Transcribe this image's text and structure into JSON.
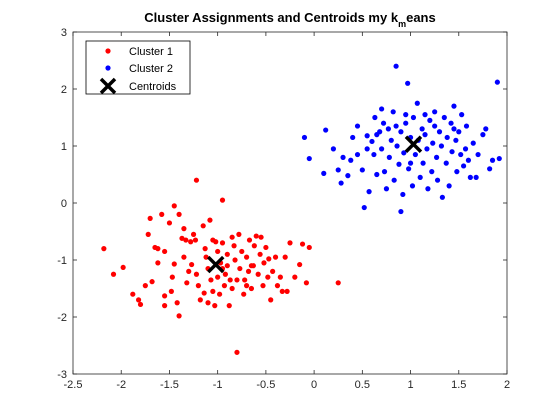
{
  "chart_data": {
    "type": "scatter",
    "title": {
      "before": "Cluster Assignments and Centroids my k",
      "subscript": "m",
      "after": "eans"
    },
    "xlabel": "",
    "ylabel": "",
    "xlim": [
      -2.5,
      2
    ],
    "ylim": [
      -3,
      3
    ],
    "x_ticks": [
      "-2.5",
      "-2",
      "-1.5",
      "-1",
      "-0.5",
      "0",
      "0.5",
      "1",
      "1.5",
      "2"
    ],
    "y_ticks": [
      "-3",
      "-2",
      "-1",
      "0",
      "1",
      "2",
      "3"
    ],
    "grid": false,
    "legend_position": "top-left",
    "series": [
      {
        "name": "Cluster 1",
        "color": "#ff0000",
        "marker": "dot",
        "points": [
          [
            -2.18,
            -0.8
          ],
          [
            -2.08,
            -1.25
          ],
          [
            -1.98,
            -1.13
          ],
          [
            -1.88,
            -1.6
          ],
          [
            -1.82,
            -1.7
          ],
          [
            -1.8,
            -1.78
          ],
          [
            -1.75,
            -1.45
          ],
          [
            -1.72,
            -0.55
          ],
          [
            -1.7,
            -0.27
          ],
          [
            -1.68,
            -1.38
          ],
          [
            -1.65,
            -0.78
          ],
          [
            -1.62,
            -0.8
          ],
          [
            -1.62,
            -1.05
          ],
          [
            -1.58,
            -0.2
          ],
          [
            -1.55,
            -1.63
          ],
          [
            -1.55,
            -1.8
          ],
          [
            -1.5,
            -0.35
          ],
          [
            -1.48,
            -1.55
          ],
          [
            -1.47,
            -1.3
          ],
          [
            -1.45,
            -0.05
          ],
          [
            -1.45,
            -1.07
          ],
          [
            -1.42,
            -1.75
          ],
          [
            -1.4,
            -0.2
          ],
          [
            -1.4,
            -1.98
          ],
          [
            -1.37,
            -0.62
          ],
          [
            -1.35,
            -0.95
          ],
          [
            -1.33,
            -0.65
          ],
          [
            -1.32,
            -1.4
          ],
          [
            -1.3,
            -1.2
          ],
          [
            -1.28,
            -0.68
          ],
          [
            -1.27,
            -1.08
          ],
          [
            -1.25,
            -0.55
          ],
          [
            -1.23,
            -0.65
          ],
          [
            -1.22,
            -1.25
          ],
          [
            -1.2,
            -1.45
          ],
          [
            -1.18,
            -1.7
          ],
          [
            -1.15,
            -0.4
          ],
          [
            -1.14,
            -1.58
          ],
          [
            -1.13,
            -0.8
          ],
          [
            -1.12,
            -0.95
          ],
          [
            -1.1,
            -1.15
          ],
          [
            -1.1,
            -1.75
          ],
          [
            -1.08,
            -0.3
          ],
          [
            -1.07,
            -1.35
          ],
          [
            -1.05,
            -0.65
          ],
          [
            -1.05,
            -1.55
          ],
          [
            -1.03,
            -1.8
          ],
          [
            -1.02,
            -0.68
          ],
          [
            -1.0,
            -0.85
          ],
          [
            -1.0,
            -1.3
          ],
          [
            -0.98,
            -1.6
          ],
          [
            -0.97,
            -1.05
          ],
          [
            -0.95,
            -0.7
          ],
          [
            -0.95,
            -1.15
          ],
          [
            -0.93,
            -1.45
          ],
          [
            -0.92,
            -1.25
          ],
          [
            -0.9,
            -0.9
          ],
          [
            -0.9,
            -1.1
          ],
          [
            -0.88,
            -1.8
          ],
          [
            -0.87,
            -1.35
          ],
          [
            -0.85,
            -0.6
          ],
          [
            -0.85,
            -1.5
          ],
          [
            -0.83,
            -0.75
          ],
          [
            -0.82,
            -1.0
          ],
          [
            -0.8,
            -2.62
          ],
          [
            -0.8,
            -1.35
          ],
          [
            -0.78,
            -0.55
          ],
          [
            -0.77,
            -1.15
          ],
          [
            -0.75,
            -0.85
          ],
          [
            -0.73,
            -1.6
          ],
          [
            -0.72,
            -1.35
          ],
          [
            -0.7,
            -0.95
          ],
          [
            -0.68,
            -1.2
          ],
          [
            -0.67,
            -0.65
          ],
          [
            -0.65,
            -1.5
          ],
          [
            -0.63,
            -1.1
          ],
          [
            -0.62,
            -0.75
          ],
          [
            -0.6,
            -0.58
          ],
          [
            -0.58,
            -1.25
          ],
          [
            -0.56,
            -0.9
          ],
          [
            -0.55,
            -0.6
          ],
          [
            -0.53,
            -1.45
          ],
          [
            -0.52,
            -1.05
          ],
          [
            -0.5,
            -0.78
          ],
          [
            -0.48,
            -1.3
          ],
          [
            -0.47,
            -0.98
          ],
          [
            -0.45,
            -1.7
          ],
          [
            -0.43,
            -1.2
          ],
          [
            -0.4,
            -0.95
          ],
          [
            -0.38,
            -1.45
          ],
          [
            -0.35,
            -1.3
          ],
          [
            -0.33,
            -1.55
          ],
          [
            -0.3,
            -0.95
          ],
          [
            -0.28,
            -1.55
          ],
          [
            -0.25,
            -0.7
          ],
          [
            -0.2,
            -1.3
          ],
          [
            -0.15,
            -1.08
          ],
          [
            -0.12,
            -0.72
          ],
          [
            -0.08,
            -1.4
          ],
          [
            -0.05,
            -0.78
          ],
          [
            0.25,
            -1.4
          ],
          [
            -1.22,
            0.4
          ],
          [
            -0.95,
            0.05
          ],
          [
            -1.55,
            -0.85
          ],
          [
            -0.65,
            -1.1
          ],
          [
            -0.7,
            -1.45
          ],
          [
            -1.35,
            -0.45
          ]
        ]
      },
      {
        "name": "Cluster 2",
        "color": "#0000ff",
        "marker": "dot",
        "points": [
          [
            -0.1,
            1.15
          ],
          [
            -0.05,
            0.78
          ],
          [
            0.1,
            0.52
          ],
          [
            0.12,
            1.28
          ],
          [
            0.2,
            0.95
          ],
          [
            0.25,
            0.58
          ],
          [
            0.28,
            0.35
          ],
          [
            0.35,
            0.48
          ],
          [
            0.38,
            0.75
          ],
          [
            0.4,
            1.15
          ],
          [
            0.45,
            0.85
          ],
          [
            0.45,
            1.35
          ],
          [
            0.5,
            0.58
          ],
          [
            0.52,
            -0.08
          ],
          [
            0.55,
            1.18
          ],
          [
            0.57,
            0.2
          ],
          [
            0.6,
            1.08
          ],
          [
            0.62,
            0.85
          ],
          [
            0.63,
            1.5
          ],
          [
            0.65,
            0.5
          ],
          [
            0.68,
            1.25
          ],
          [
            0.7,
            0.95
          ],
          [
            0.72,
            1.4
          ],
          [
            0.73,
            0.55
          ],
          [
            0.75,
            0.25
          ],
          [
            0.77,
            1.3
          ],
          [
            0.78,
            0.8
          ],
          [
            0.8,
            1.1
          ],
          [
            0.82,
            1.6
          ],
          [
            0.83,
            0.4
          ],
          [
            0.85,
            2.4
          ],
          [
            0.86,
            1.0
          ],
          [
            0.88,
            0.68
          ],
          [
            0.9,
            1.25
          ],
          [
            0.9,
            -0.15
          ],
          [
            0.92,
            0.15
          ],
          [
            0.93,
            0.88
          ],
          [
            0.95,
            1.4
          ],
          [
            0.97,
            2.1
          ],
          [
            0.98,
            0.6
          ],
          [
            1.0,
            1.15
          ],
          [
            1.02,
            0.3
          ],
          [
            1.03,
            1.5
          ],
          [
            1.05,
            0.85
          ],
          [
            1.07,
            1.75
          ],
          [
            1.08,
            1.1
          ],
          [
            1.1,
            0.45
          ],
          [
            1.12,
            1.3
          ],
          [
            1.13,
            0.7
          ],
          [
            1.15,
            1.2
          ],
          [
            1.17,
            0.95
          ],
          [
            1.18,
            0.25
          ],
          [
            1.2,
            1.45
          ],
          [
            1.22,
            0.55
          ],
          [
            1.23,
            1.05
          ],
          [
            1.25,
            1.6
          ],
          [
            1.27,
            0.8
          ],
          [
            1.28,
            0.4
          ],
          [
            1.3,
            1.25
          ],
          [
            1.32,
            1.0
          ],
          [
            1.33,
            0.1
          ],
          [
            1.35,
            1.5
          ],
          [
            1.37,
            0.7
          ],
          [
            1.38,
            1.15
          ],
          [
            1.4,
            0.3
          ],
          [
            1.42,
            1.4
          ],
          [
            1.43,
            0.9
          ],
          [
            1.45,
            1.7
          ],
          [
            1.47,
            1.1
          ],
          [
            1.48,
            0.55
          ],
          [
            1.5,
            1.25
          ],
          [
            1.52,
            0.85
          ],
          [
            1.53,
            1.55
          ],
          [
            1.55,
            0.65
          ],
          [
            1.57,
            0.95
          ],
          [
            1.58,
            1.35
          ],
          [
            1.6,
            0.75
          ],
          [
            1.62,
            0.45
          ],
          [
            1.65,
            1.05
          ],
          [
            1.68,
            0.45
          ],
          [
            1.7,
            0.85
          ],
          [
            1.75,
            1.2
          ],
          [
            1.78,
            1.3
          ],
          [
            1.82,
            0.6
          ],
          [
            1.85,
            0.75
          ],
          [
            1.9,
            2.12
          ],
          [
            1.92,
            0.78
          ],
          [
            0.3,
            0.8
          ],
          [
            0.55,
            0.95
          ],
          [
            0.65,
            1.2
          ],
          [
            0.95,
            1.55
          ],
          [
            1.0,
            0.7
          ],
          [
            1.25,
            1.35
          ],
          [
            1.45,
            1.3
          ],
          [
            1.15,
            1.55
          ],
          [
            0.85,
            1.35
          ],
          [
            0.7,
            1.65
          ]
        ]
      },
      {
        "name": "Centroids",
        "color": "#000000",
        "marker": "x",
        "points": [
          [
            -1.02,
            -1.08
          ],
          [
            1.03,
            1.03
          ]
        ]
      }
    ]
  }
}
